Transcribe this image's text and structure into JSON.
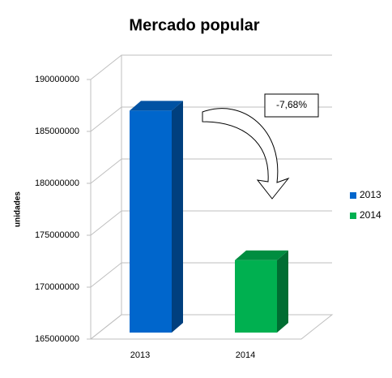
{
  "chart_data": {
    "type": "bar",
    "title": "Mercado popular",
    "y_label": "unidades",
    "categories": [
      "2013",
      "2014"
    ],
    "series": [
      {
        "name": "2013",
        "color": "#0066cc",
        "values": [
          187000000,
          null
        ]
      },
      {
        "name": "2014",
        "color": "#00b050",
        "values": [
          null,
          172600000
        ]
      }
    ],
    "ylim": [
      165000000,
      190000000
    ],
    "yticks": [
      165000000,
      170000000,
      175000000,
      180000000,
      185000000,
      190000000
    ],
    "grid": true,
    "legend": "right",
    "annotation": "-7,68%"
  }
}
